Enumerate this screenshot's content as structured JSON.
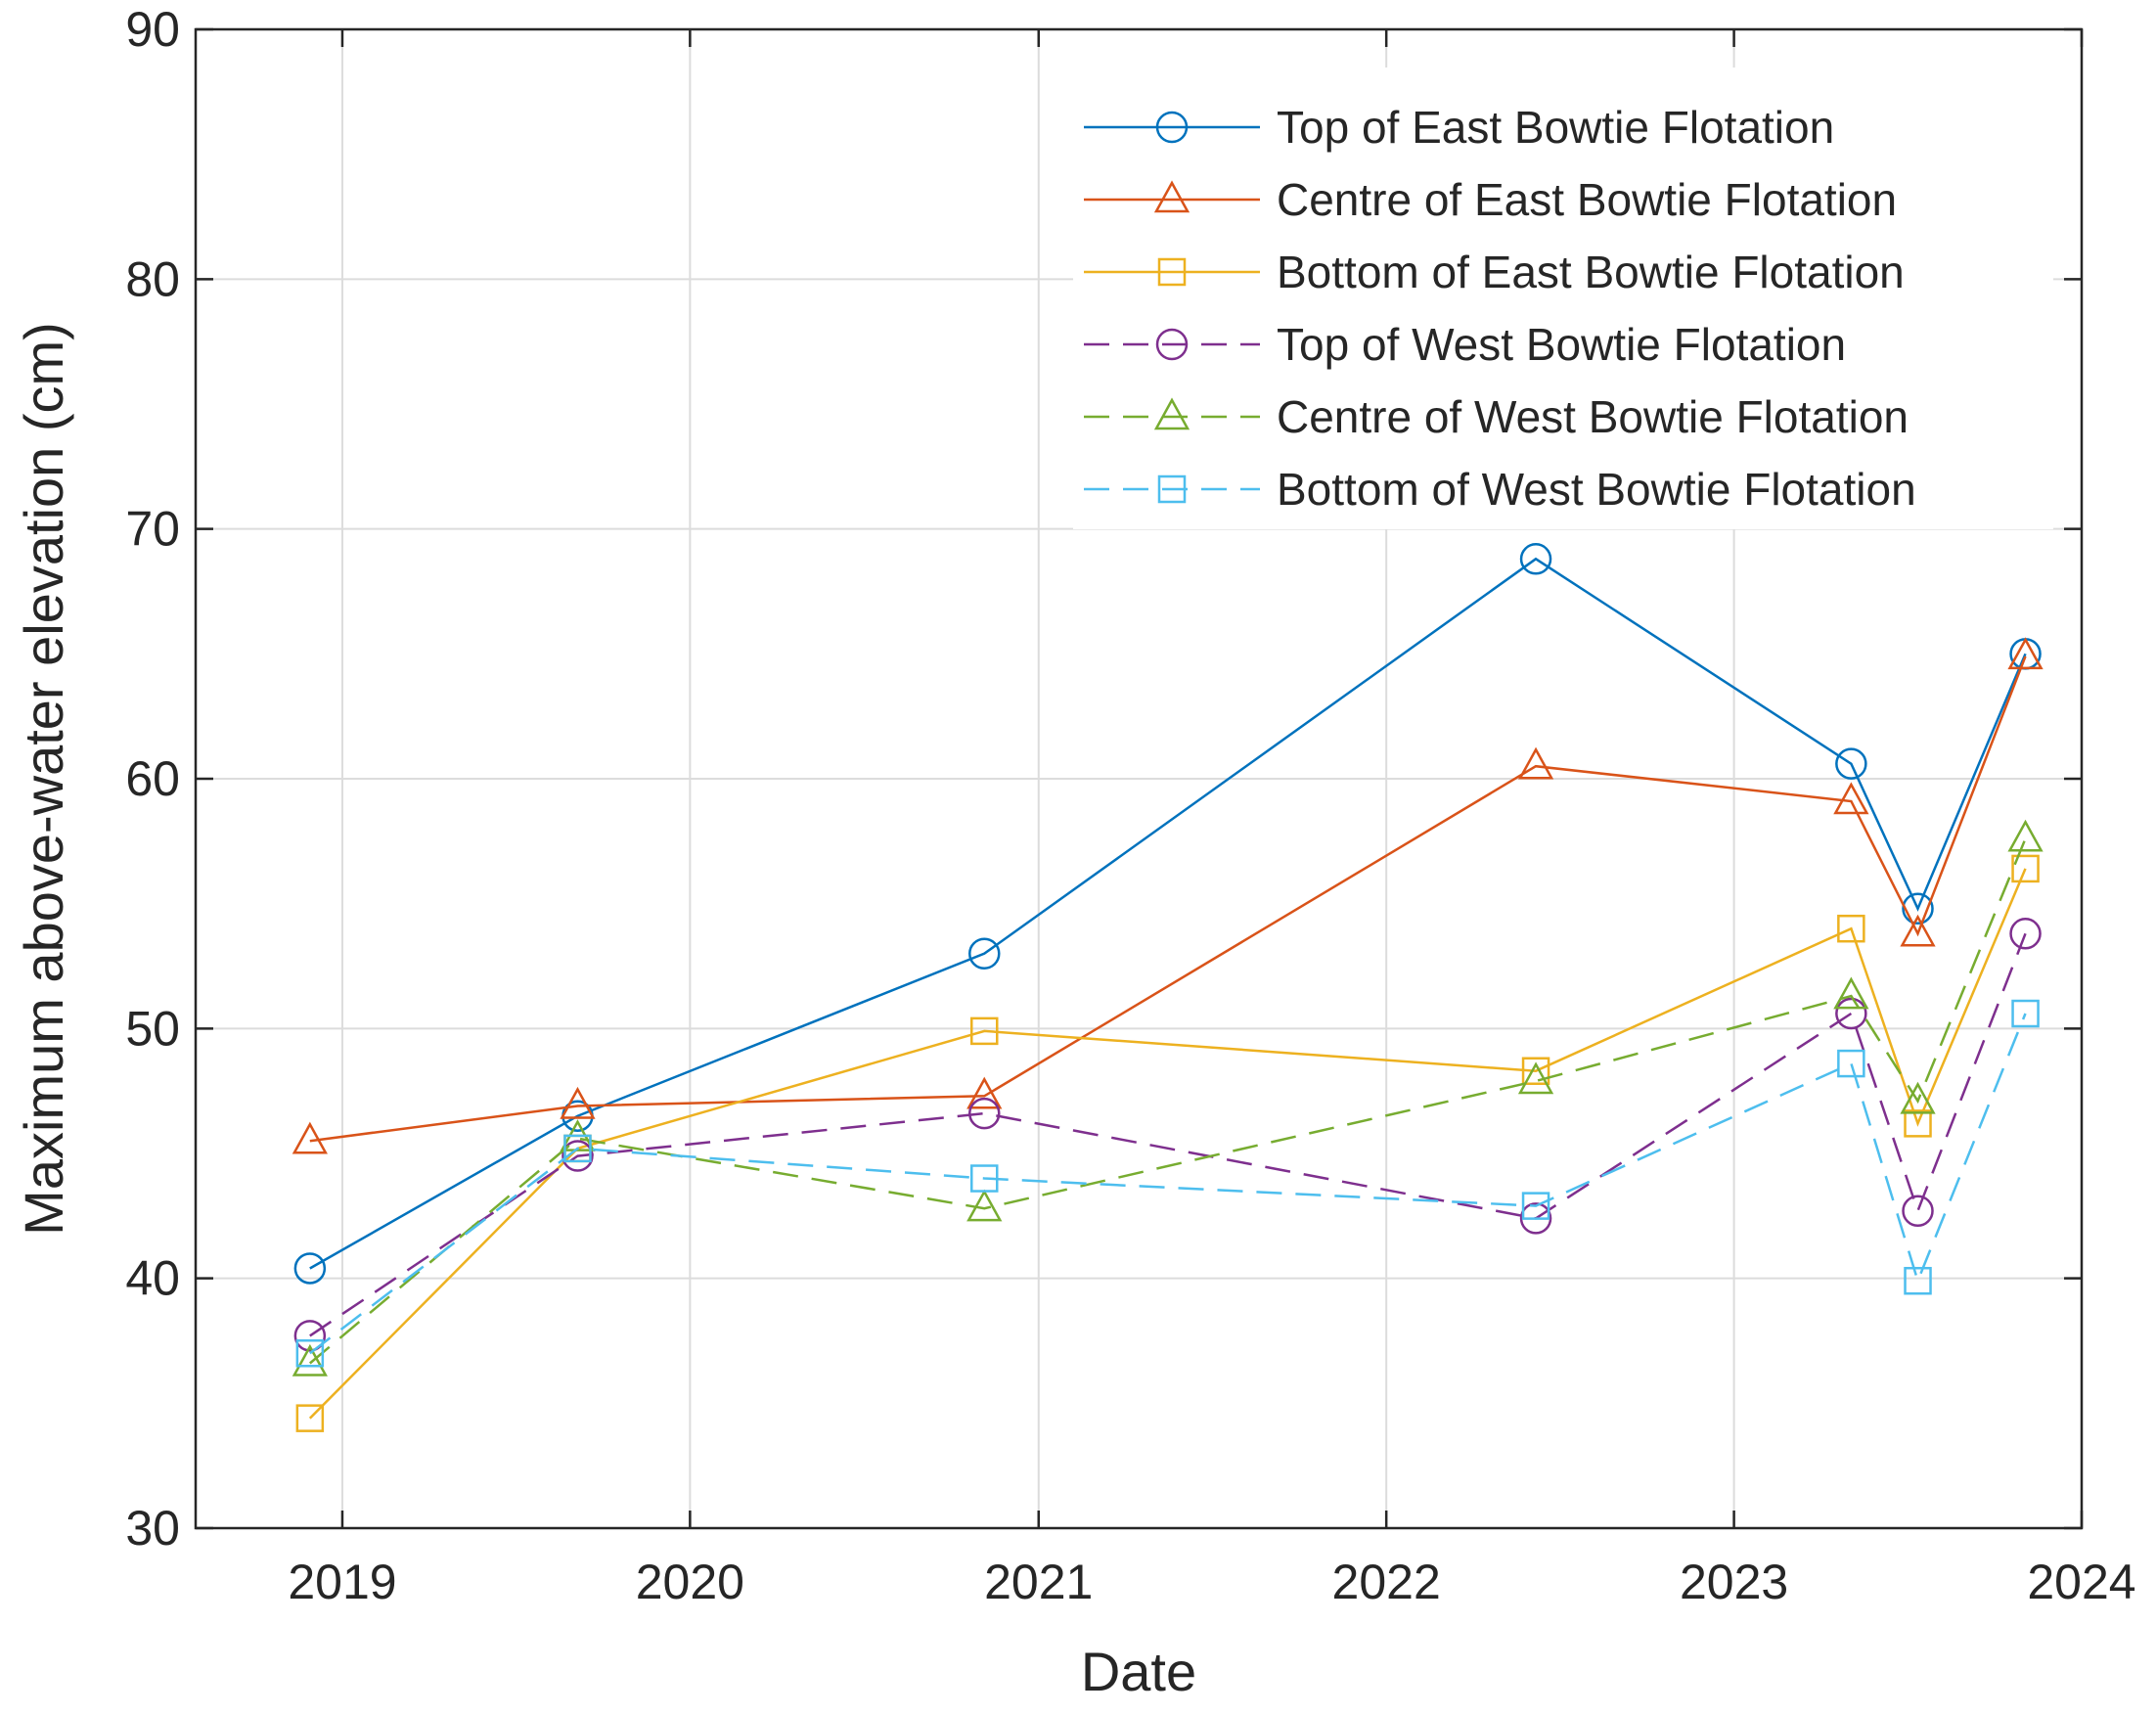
{
  "chart_data": {
    "type": "line",
    "xlabel": "Date",
    "ylabel": "Maximum above-water elevation (cm)",
    "xlim": [
      "2018-07-31",
      "2024-01-01"
    ],
    "ylim": [
      30,
      90
    ],
    "xticks": [
      "2019-01-01",
      "2020-01-01",
      "2021-01-01",
      "2022-01-01",
      "2023-01-01",
      "2024-01-01"
    ],
    "xtick_labels": [
      "2019",
      "2020",
      "2021",
      "2022",
      "2023",
      "2024"
    ],
    "yticks": [
      30,
      40,
      50,
      60,
      70,
      80,
      90
    ],
    "ytick_labels": [
      "30",
      "40",
      "50",
      "60",
      "70",
      "80",
      "90"
    ],
    "grid": true,
    "legend_position": "top-right",
    "x": [
      "2018-11-28",
      "2019-09-05",
      "2020-11-05",
      "2022-06-07",
      "2023-05-04",
      "2023-07-13",
      "2023-11-03"
    ],
    "series": [
      {
        "name": "Top of East Bowtie Flotation",
        "color": "#0072BD",
        "marker": "circle",
        "dashed": false,
        "values": [
          40.4,
          46.5,
          53.0,
          68.8,
          60.6,
          54.8,
          65.0
        ]
      },
      {
        "name": "Centre of East Bowtie Flotation",
        "color": "#D95319",
        "marker": "triangle",
        "dashed": false,
        "values": [
          45.5,
          46.9,
          47.3,
          60.5,
          59.1,
          53.8,
          64.9
        ]
      },
      {
        "name": "Bottom of East Bowtie Flotation",
        "color": "#EDB120",
        "marker": "square",
        "dashed": false,
        "values": [
          34.4,
          45.2,
          49.9,
          48.3,
          54.0,
          46.2,
          56.4
        ]
      },
      {
        "name": "Top of West Bowtie Flotation",
        "color": "#7E2F8E",
        "marker": "circle",
        "dashed": true,
        "values": [
          37.7,
          44.9,
          46.6,
          42.4,
          50.6,
          42.7,
          53.8
        ]
      },
      {
        "name": "Centre of West Bowtie Flotation",
        "color": "#77AC30",
        "marker": "triangle",
        "dashed": true,
        "values": [
          36.6,
          45.6,
          42.8,
          47.9,
          51.3,
          47.1,
          57.6
        ]
      },
      {
        "name": "Bottom of West Bowtie Flotation",
        "color": "#4DBEEE",
        "marker": "square",
        "dashed": true,
        "values": [
          37.0,
          45.2,
          44.0,
          42.9,
          48.6,
          39.9,
          50.6
        ]
      }
    ]
  }
}
